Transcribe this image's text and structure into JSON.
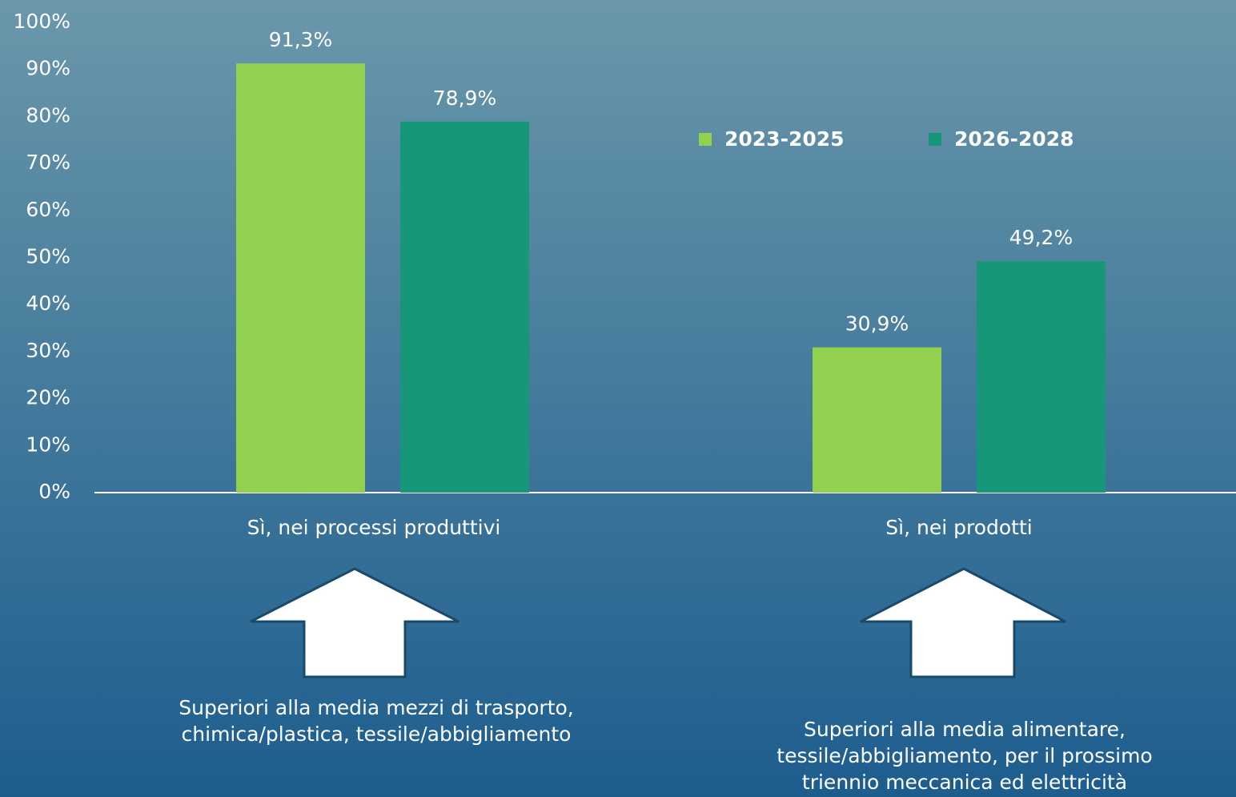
{
  "chart_data": {
    "type": "bar",
    "categories": [
      "Sì, nei processi produttivi",
      "Sì, nei prodotti"
    ],
    "series": [
      {
        "name": "2023-2025",
        "color": "#92d050",
        "values": [
          91.3,
          30.9
        ],
        "value_labels": [
          "91,3%",
          "30,9%"
        ]
      },
      {
        "name": "2026-2028",
        "color": "#169779",
        "values": [
          78.9,
          49.2
        ],
        "value_labels": [
          "78,9%",
          "49,2%"
        ]
      }
    ],
    "ylim": [
      0,
      100
    ],
    "yticks": [
      {
        "value": 0,
        "label": "0%"
      },
      {
        "value": 10,
        "label": "10%"
      },
      {
        "value": 20,
        "label": "20%"
      },
      {
        "value": 30,
        "label": "30%"
      },
      {
        "value": 40,
        "label": "40%"
      },
      {
        "value": 50,
        "label": "50%"
      },
      {
        "value": 60,
        "label": "60%"
      },
      {
        "value": 70,
        "label": "70%"
      },
      {
        "value": 80,
        "label": "80%"
      },
      {
        "value": 90,
        "label": "90%"
      },
      {
        "value": 100,
        "label": "100%"
      }
    ],
    "legend": "top-right",
    "annotations": [
      {
        "lines": [
          "Superiori alla media mezzi di trasporto,",
          "chimica/plastica, tessile/abbigliamento"
        ]
      },
      {
        "lines": [
          "Superiori alla media alimentare,",
          "tessile/abbigliamento, per il prossimo",
          "triennio meccanica ed elettricità"
        ]
      }
    ]
  }
}
